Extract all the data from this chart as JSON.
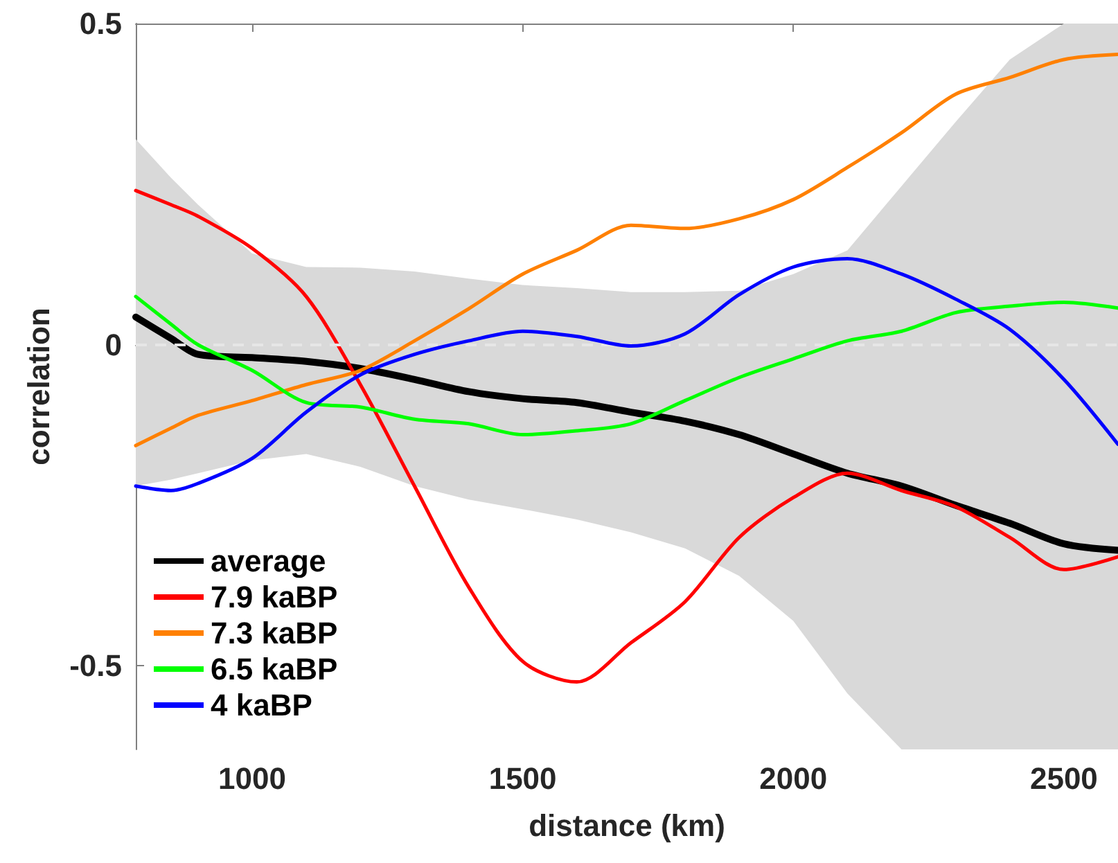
{
  "chart_data": {
    "type": "line",
    "xlabel": "distance (km)",
    "ylabel": "correlation",
    "x": [
      785,
      850,
      900,
      1000,
      1100,
      1200,
      1300,
      1400,
      1500,
      1600,
      1700,
      1800,
      1900,
      2000,
      2100,
      2200,
      2300,
      2400,
      2500,
      2600
    ],
    "series": [
      {
        "name": "average",
        "color": "#000000",
        "values": [
          0.043,
          0.01,
          -0.015,
          -0.02,
          -0.026,
          -0.037,
          -0.054,
          -0.073,
          -0.084,
          -0.09,
          -0.105,
          -0.119,
          -0.14,
          -0.17,
          -0.2,
          -0.22,
          -0.25,
          -0.278,
          -0.31,
          -0.32
        ],
        "lower": [
          -0.22,
          -0.21,
          -0.2,
          -0.18,
          -0.17,
          -0.19,
          -0.22,
          -0.241,
          -0.256,
          -0.272,
          -0.292,
          -0.317,
          -0.36,
          -0.43,
          -0.543,
          -0.63,
          -0.63,
          -0.63,
          -0.63,
          -0.63
        ],
        "upper": [
          0.32,
          0.26,
          0.218,
          0.142,
          0.121,
          0.12,
          0.114,
          0.103,
          0.093,
          0.088,
          0.082,
          0.082,
          0.084,
          0.11,
          0.147,
          0.247,
          0.347,
          0.444,
          0.5,
          0.5
        ]
      },
      {
        "name": "7.9 kaBP",
        "color": "#ff0000",
        "values": [
          0.24,
          0.218,
          0.2,
          0.15,
          0.075,
          -0.062,
          -0.22,
          -0.377,
          -0.493,
          -0.525,
          -0.464,
          -0.4,
          -0.3,
          -0.238,
          -0.2,
          -0.227,
          -0.252,
          -0.3,
          -0.35,
          -0.33
        ]
      },
      {
        "name": "7.3 kaBP",
        "color": "#ff8000",
        "values": [
          -0.157,
          -0.13,
          -0.11,
          -0.087,
          -0.062,
          -0.04,
          0.006,
          0.056,
          0.11,
          0.147,
          0.186,
          0.181,
          0.196,
          0.226,
          0.276,
          0.33,
          0.39,
          0.416,
          0.444,
          0.452
        ]
      },
      {
        "name": "6.5 kaBP",
        "color": "#00ff00",
        "values": [
          0.075,
          0.032,
          0,
          -0.04,
          -0.09,
          -0.097,
          -0.116,
          -0.123,
          -0.14,
          -0.134,
          -0.123,
          -0.087,
          -0.051,
          -0.022,
          0.006,
          0.021,
          0.05,
          0.06,
          0.066,
          0.057
        ]
      },
      {
        "name": "4 kaBP",
        "color": "#0000ff",
        "values": [
          -0.22,
          -0.227,
          -0.216,
          -0.177,
          -0.105,
          -0.047,
          -0.015,
          0.006,
          0.021,
          0.013,
          -0.002,
          0.017,
          0.078,
          0.121,
          0.134,
          0.11,
          0.071,
          0.024,
          -0.054,
          -0.155
        ]
      }
    ],
    "xlim": [
      785,
      2600
    ],
    "xticks": [
      1000,
      1500,
      2000,
      2500
    ],
    "ylim": [
      -0.63,
      0.5
    ],
    "yticks": [
      -0.5,
      0,
      0.5
    ],
    "ref_lines": [
      {
        "axis": "y",
        "value": 0,
        "color": "#e6e6e6",
        "line_style": "dashed"
      }
    ],
    "legend": "bottom left",
    "grid": false,
    "marker": "none",
    "line_style": "solid"
  }
}
